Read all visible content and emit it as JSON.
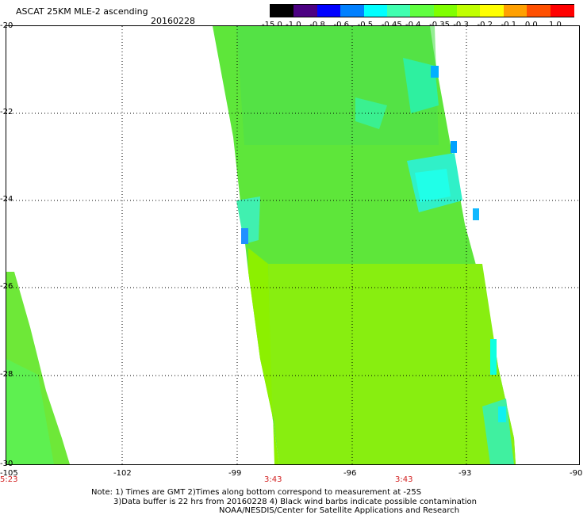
{
  "header": {
    "title": "ASCAT 25KM MLE-2 ascending",
    "date": "20160228"
  },
  "colorbar": {
    "labels": [
      "-15.0",
      "-1.0",
      "-0.8",
      "-0.6",
      "-0.5",
      "-0.45",
      "-0.4",
      "-0.35",
      "-0.3",
      "-0.2",
      "-0.1",
      "0.0",
      "1.0"
    ],
    "colors": [
      "#000000",
      "#4b0082",
      "#0000ff",
      "#0080ff",
      "#00ffff",
      "#40ffb0",
      "#60ff40",
      "#80ff00",
      "#c0ff00",
      "#ffff00",
      "#ffa000",
      "#ff5000",
      "#ff0000"
    ]
  },
  "axes": {
    "lat_labels": [
      "-20",
      "-22",
      "-24",
      "-26",
      "-28",
      "-30"
    ],
    "lon_labels": [
      "-105",
      "-102",
      "-99",
      "-96",
      "-93",
      "-90"
    ],
    "time_labels": [
      "5:23",
      "3:43",
      "3:43"
    ]
  },
  "notes": {
    "line1": "Note: 1) Times are GMT 2)Times along bottom correspond to measurement at -25S",
    "line2": "3)Data buffer is 22 hrs from 20160228 4) Black wind barbs indicate possible contamination",
    "line3": "NOAA/NESDIS/Center for Satellite Applications and Research"
  }
}
